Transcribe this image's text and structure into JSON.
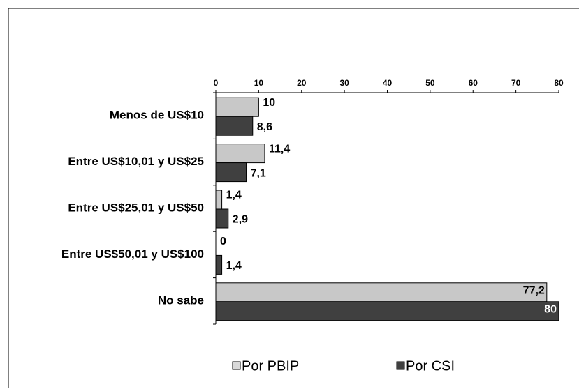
{
  "chart_data": {
    "type": "bar",
    "orientation": "horizontal",
    "categories": [
      "Menos de US$10",
      "Entre US$10,01 y US$25",
      "Entre US$25,01 y US$50",
      "Entre US$50,01 y US$100",
      "No sabe"
    ],
    "series": [
      {
        "name": "Por PBIP",
        "color": "#d9d9d9",
        "values": [
          10,
          11.4,
          1.4,
          0,
          77.2
        ],
        "value_labels": [
          "10",
          "11,4",
          "1,4",
          "0",
          "77,2"
        ]
      },
      {
        "name": "Por CSI",
        "color": "#404040",
        "values": [
          8.6,
          7.1,
          2.9,
          1.4,
          80
        ],
        "value_labels": [
          "8,6",
          "7,1",
          "2,9",
          "1,4",
          "80"
        ]
      }
    ],
    "xlim": [
      0,
      80
    ],
    "xticks": [
      0,
      10,
      20,
      30,
      40,
      50,
      60,
      70,
      80
    ],
    "legend": "bottom"
  }
}
